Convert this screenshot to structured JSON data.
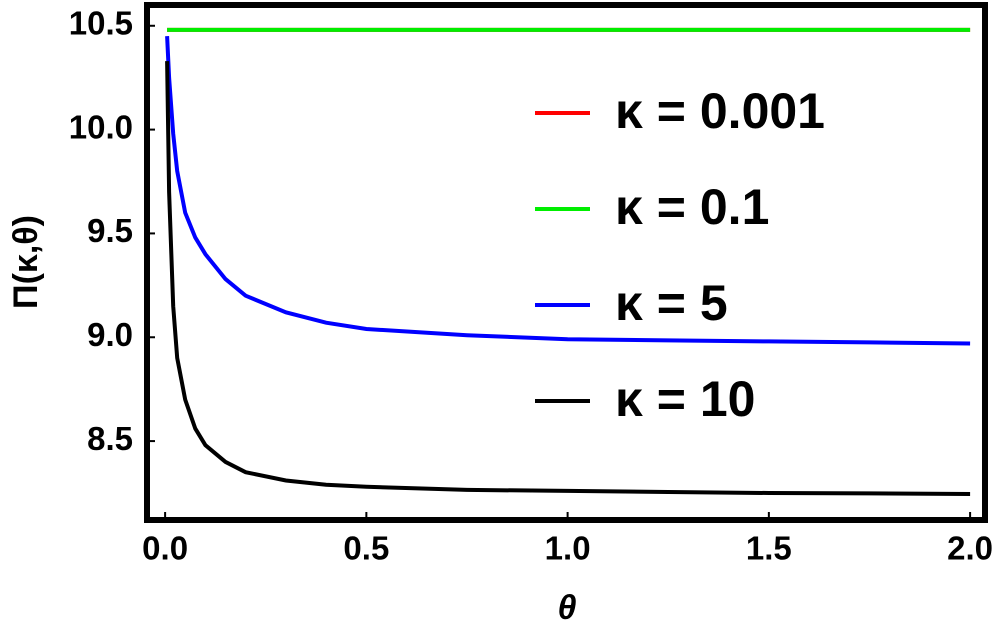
{
  "chart_data": {
    "type": "line",
    "xlabel": "θ",
    "ylabel": "Π(κ,θ)",
    "x": [
      0.005,
      0.01,
      0.02,
      0.03,
      0.05,
      0.075,
      0.1,
      0.15,
      0.2,
      0.3,
      0.4,
      0.5,
      0.75,
      1.0,
      1.25,
      1.5,
      1.75,
      2.0
    ],
    "series": [
      {
        "name": "κ = 0.001",
        "color": "#ff0000",
        "values": [
          10.48,
          10.48,
          10.48,
          10.48,
          10.48,
          10.48,
          10.48,
          10.48,
          10.48,
          10.48,
          10.48,
          10.48,
          10.48,
          10.48,
          10.48,
          10.48,
          10.48,
          10.48
        ]
      },
      {
        "name": "κ = 0.1",
        "color": "#00ee00",
        "values": [
          10.48,
          10.48,
          10.48,
          10.48,
          10.48,
          10.48,
          10.48,
          10.48,
          10.48,
          10.48,
          10.48,
          10.48,
          10.48,
          10.48,
          10.48,
          10.48,
          10.48,
          10.48
        ]
      },
      {
        "name": "κ = 5",
        "color": "#0000ff",
        "values": [
          10.45,
          10.25,
          9.98,
          9.8,
          9.6,
          9.48,
          9.4,
          9.28,
          9.2,
          9.12,
          9.07,
          9.04,
          9.01,
          8.99,
          8.985,
          8.98,
          8.975,
          8.97
        ]
      },
      {
        "name": "κ = 10",
        "color": "#000000",
        "values": [
          10.33,
          9.7,
          9.15,
          8.9,
          8.7,
          8.56,
          8.48,
          8.4,
          8.35,
          8.31,
          8.29,
          8.28,
          8.265,
          8.26,
          8.255,
          8.25,
          8.248,
          8.245
        ]
      }
    ],
    "xlim": [
      -0.045,
      2.037
    ],
    "ylim": [
      8.12,
      10.6
    ],
    "xticks": [
      {
        "value": 0,
        "label": "0.0"
      },
      0.5,
      {
        "value": 1,
        "label": "1.0"
      },
      1.5,
      {
        "value": 2,
        "label": "2.0"
      }
    ],
    "yticks": [
      8.5,
      {
        "value": 9,
        "label": "9.0"
      },
      9.5,
      {
        "value": 10,
        "label": "10.0"
      },
      10.5
    ],
    "legend": "right"
  }
}
